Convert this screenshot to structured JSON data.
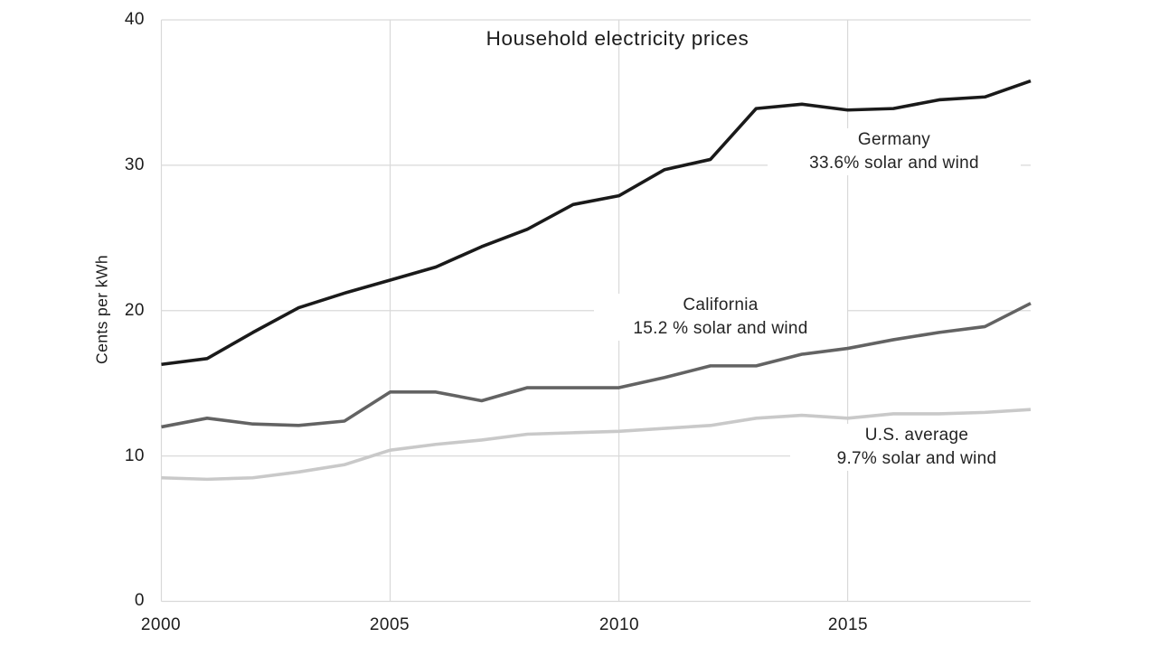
{
  "chart_data": {
    "type": "line",
    "title": "Household electricity prices",
    "xlabel": "",
    "ylabel": "Cents per kWh",
    "xlim": [
      2000,
      2019
    ],
    "ylim": [
      0,
      40
    ],
    "grid": true,
    "legend_position": "inline-annotations",
    "x": [
      2000,
      2001,
      2002,
      2003,
      2004,
      2005,
      2006,
      2007,
      2008,
      2009,
      2010,
      2011,
      2012,
      2013,
      2014,
      2015,
      2016,
      2017,
      2018,
      2019
    ],
    "xticks": [
      2000,
      2005,
      2010,
      2015
    ],
    "yticks_top_down": [
      40,
      30,
      20,
      10,
      0
    ],
    "colors": {
      "germany": "#1a1a1a",
      "california": "#636363",
      "us_average": "#c9c9c9",
      "gridline": "#d9d9d9",
      "text": "#1c1c1c"
    },
    "series": [
      {
        "name": "Germany",
        "annotation_line1": "Germany",
        "annotation_line2": "33.6% solar and wind",
        "color": "#1a1a1a",
        "values": [
          16.3,
          16.7,
          18.5,
          20.2,
          21.2,
          22.1,
          23.0,
          24.4,
          25.6,
          27.3,
          27.9,
          29.7,
          30.4,
          33.9,
          34.2,
          33.8,
          33.9,
          34.5,
          34.7,
          35.8
        ]
      },
      {
        "name": "California",
        "annotation_line1": "California",
        "annotation_line2": "15.2 % solar and wind",
        "color": "#636363",
        "values": [
          12.0,
          12.6,
          12.2,
          12.1,
          12.4,
          14.4,
          14.4,
          13.8,
          14.7,
          14.7,
          14.7,
          15.4,
          16.2,
          16.2,
          17.0,
          17.4,
          18.0,
          18.5,
          18.9,
          20.5
        ]
      },
      {
        "name": "U.S. average",
        "annotation_line1": "U.S. average",
        "annotation_line2": "9.7% solar and wind",
        "color": "#c9c9c9",
        "values": [
          8.5,
          8.4,
          8.5,
          8.9,
          9.4,
          10.4,
          10.8,
          11.1,
          11.5,
          11.6,
          11.7,
          11.9,
          12.1,
          12.6,
          12.8,
          12.6,
          12.9,
          12.9,
          13.0,
          13.2
        ]
      }
    ]
  }
}
